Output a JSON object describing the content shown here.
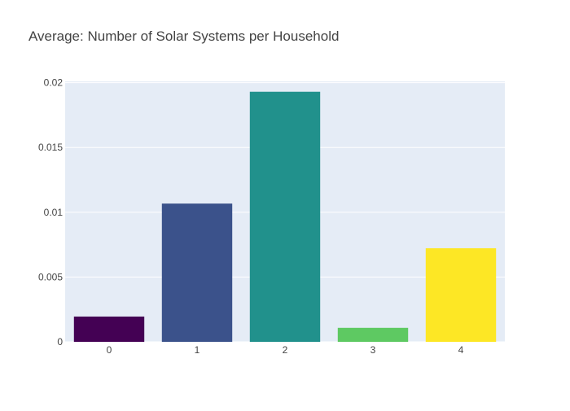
{
  "chart_data": {
    "type": "bar",
    "title": "Average: Number of Solar Systems per Household",
    "xlabel": "",
    "ylabel": "",
    "categories": [
      "0",
      "1",
      "2",
      "3",
      "4"
    ],
    "values": [
      0.00195,
      0.01067,
      0.0193,
      0.00108,
      0.00722
    ],
    "bar_colors": [
      "#440154",
      "#3b528b",
      "#21918c",
      "#5ec962",
      "#fde725"
    ],
    "ylim": [
      0,
      0.0201
    ],
    "yticks": [
      0,
      0.005,
      0.01,
      0.015,
      0.02
    ],
    "ytick_labels": [
      "0",
      "0.005",
      "0.01",
      "0.015",
      "0.02"
    ],
    "grid": true,
    "plot_background": "#e5ecf6"
  }
}
